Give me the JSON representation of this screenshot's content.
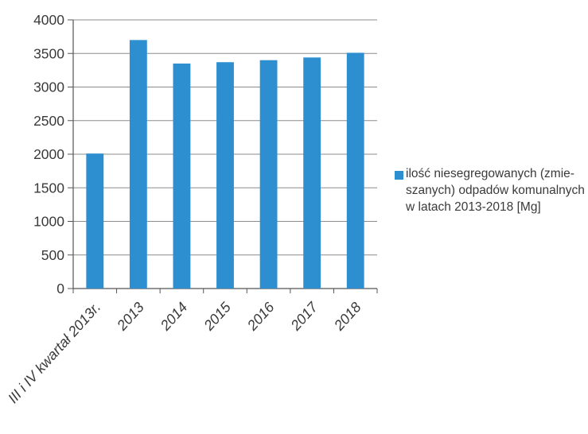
{
  "chart_data": {
    "type": "bar",
    "categories": [
      "III i IV kwartał 2013r.",
      "2013",
      "2014",
      "2015",
      "2016",
      "2017",
      "2018"
    ],
    "series": [
      {
        "name": "ilość niesegregowanych (zmie-\nszanych) odpadów komunalnych\nw latach 2013-2018 [Mg]",
        "values": [
          2010,
          3700,
          3350,
          3370,
          3400,
          3440,
          3510
        ],
        "color": "#2d8fd0"
      }
    ],
    "y_ticks": [
      "0",
      "500",
      "1000",
      "1500",
      "2000",
      "2500",
      "3000",
      "3500",
      "4000"
    ],
    "ylim": [
      0,
      4000
    ],
    "grid": true,
    "legend_position": "right",
    "title": "",
    "xlabel": "",
    "ylabel": ""
  }
}
